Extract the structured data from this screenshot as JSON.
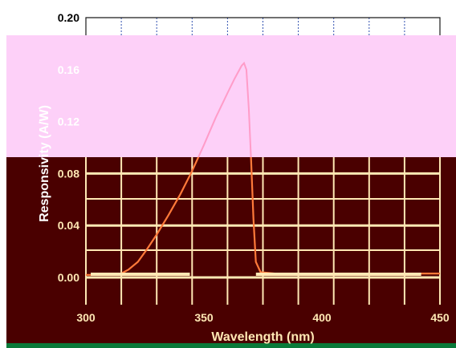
{
  "chart_data": {
    "type": "line",
    "title": "",
    "xlabel": "Wavelength (nm)",
    "ylabel": "Responsivity (A/W)",
    "xlim": [
      300,
      450
    ],
    "ylim": [
      0.0,
      0.2
    ],
    "x_ticks": [
      300,
      350,
      400,
      450
    ],
    "x_tick_labels": [
      "300",
      "350",
      "400",
      "450"
    ],
    "y_ticks": [
      0.0,
      0.04,
      0.08,
      0.12,
      0.16,
      0.2
    ],
    "y_tick_labels": [
      "0.00",
      "0.04",
      "0.08",
      "0.12",
      "0.16",
      "0.20"
    ],
    "grid": true,
    "legend": "none",
    "colors": {
      "top_band": "#fdd0f8",
      "bottom_band": "#4a0000",
      "grid_light": "#ffe8b4",
      "curve_upper": "#ff9cc8",
      "curve_lower": "#ff7a3a",
      "frame": "#1a1a1a"
    },
    "series": [
      {
        "x": [
          300,
          305,
          310,
          315,
          318,
          322,
          326,
          330,
          335,
          340,
          345,
          350,
          355,
          360,
          363,
          366,
          367,
          368,
          369,
          370,
          371,
          372,
          374,
          380,
          390,
          400,
          420,
          440,
          450
        ],
        "values": [
          0.002,
          0.002,
          0.002,
          0.003,
          0.006,
          0.012,
          0.022,
          0.033,
          0.048,
          0.064,
          0.082,
          0.102,
          0.123,
          0.142,
          0.153,
          0.163,
          0.165,
          0.16,
          0.13,
          0.09,
          0.045,
          0.012,
          0.004,
          0.003,
          0.003,
          0.003,
          0.003,
          0.003,
          0.003
        ]
      }
    ]
  }
}
